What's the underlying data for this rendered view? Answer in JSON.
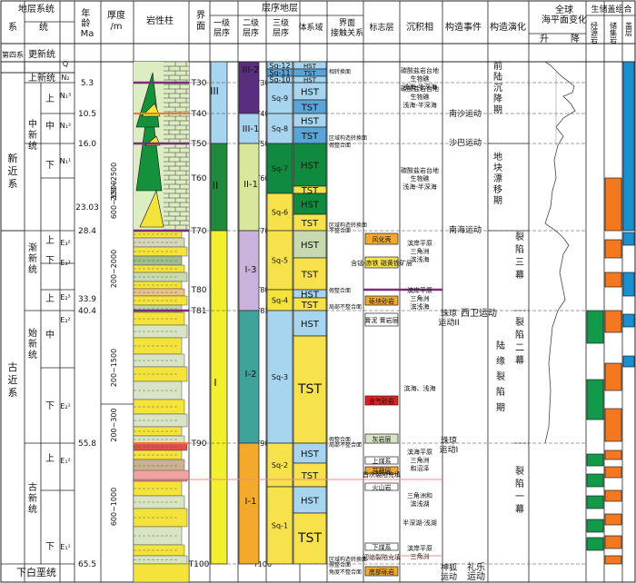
{
  "header": {
    "stratigraphic_system": "地层系统",
    "system": "系",
    "series": "统",
    "age": "年龄 Ma",
    "thickness": "厚度 /m",
    "lithology": "岩性柱",
    "boundary": "界面",
    "sequence_stratigraphy": "层序地层",
    "first_order": "一级 层序",
    "second_order": "二级 层序",
    "third_order": "三级 层序",
    "systems_tract": "体系域",
    "contact": "界面 接触关系",
    "marker": "标志层",
    "facies": "沉积相",
    "events": "构造事件",
    "evolution": "构造演化",
    "sea_level": "全球 海平面变化",
    "rise": "升",
    "fall": "降",
    "petroleum": "生储盖组合",
    "source": "烃源岩",
    "reservoir": "储集岩",
    "seal": "盖层"
  },
  "systems": [
    {
      "label": "第四系"
    },
    {
      "label": "新近系"
    },
    {
      "label": "古近系"
    }
  ],
  "series": [
    {
      "label": "更新统"
    },
    {
      "label": "上新统"
    },
    {
      "label": "中新统"
    },
    {
      "label": "渐新统"
    },
    {
      "label": "始新统"
    },
    {
      "label": "古新统"
    }
  ],
  "bottom_label": "下白垩统",
  "subseries": [
    {
      "label": "上",
      "code": "N₁³"
    },
    {
      "label": "中",
      "code": "N₁²"
    },
    {
      "label": "下",
      "code": "N₁¹"
    },
    {
      "label": "上",
      "code": "E₃²"
    },
    {
      "label": "下",
      "code": "E₃¹"
    },
    {
      "label": "上",
      "code": "E₂³"
    },
    {
      "label": "中",
      "code": "E₂²"
    },
    {
      "label": "下",
      "code": "E₂¹"
    },
    {
      "label": "上",
      "code": "E₁²"
    },
    {
      "label": "下",
      "code": "E₁¹"
    }
  ],
  "codes_top": [
    "Q",
    "N₂"
  ],
  "ages": [
    "5.3",
    "10.5",
    "16.0",
    "23.03",
    "28.4",
    "33.9",
    "40.4",
    "55.8",
    "65.5"
  ],
  "thickness": [
    "200~2500",
    "600~1500",
    "200~2000",
    "200~1500",
    "200~300",
    "600~1000"
  ],
  "surfaces": [
    "T30",
    "T40",
    "T50",
    "T60",
    "T70",
    "T80",
    "T81",
    "T90",
    "T100"
  ],
  "first_order": [
    "III",
    "II",
    "I"
  ],
  "second_order": [
    "III-2",
    "III-1",
    "II-1",
    "I-3",
    "I-2",
    "I-1"
  ],
  "third_order": [
    "Sq-12",
    "Sq-11",
    "Sq-10",
    "Sq-9",
    "Sq-8",
    "Sq-7",
    "Sq-6",
    "Sq-5",
    "Sq-4",
    "Sq-3",
    "Sq-2",
    "Sq-1"
  ],
  "tracts": {
    "hst": "HST",
    "tst": "TST"
  },
  "contacts": [
    "相转换面",
    "区域构造转换面",
    "假整合面",
    "区域构造转换面",
    "不整合面",
    "假整合面",
    "局部不整合面",
    "假整合面",
    "局部不整合面",
    "区域构造转换面",
    "假整合面",
    "角度不整合面"
  ],
  "markers": [
    "风化壳",
    "含锰-赤铁 磁黄铁矿层",
    "砾块砂岩",
    "膏泥 膏岩层",
    "含气砂岩",
    "灰岩层",
    "上煤系",
    "苔藓层",
    "火山岩",
    "下煤系",
    "底部砾岩"
  ],
  "facies": [
    "碳酸盐岩台地 生物礁 浅海-半深海",
    "碳酸盐岩台地 生物礁 浅海-半深海",
    "碳酸盐岩台地 生物礁 浅海-半深海",
    "滨岸平原 三角洲 滨浅海",
    "滨岸平原 三角洲 滨浅海",
    "滨海、浅海",
    "滨海平原 三角洲 和沼泽",
    "三角洲和 滨浅湖",
    "半深湖-浅湖",
    "滨岸平原 三角洲"
  ],
  "events": [
    "南沙运动",
    "沙巴运动",
    "南海运动",
    "西卫运动",
    "珠琼 运动II",
    "珠琼 运动I",
    "礼乐 运动",
    "神狐 运动"
  ],
  "evolution": [
    "前陆沉降期",
    "地块漂移期",
    "裂陷三幕",
    "陆缘裂陷期",
    "裂陷二幕",
    "裂陷一幕"
  ],
  "annotations": [
    "首次裂陷充填",
    "初始裂陷充填"
  ],
  "colors": {
    "first_III": "#a7d4ef",
    "first_II": "#1d8a3c",
    "first_I": "#f2f02c",
    "second_III2": "#5a2d7e",
    "second_III1": "#a7d4ef",
    "second_II1": "#d7e89a",
    "second_I3": "#c9b3dc",
    "second_I2": "#40a39b",
    "second_I1": "#f3a92a",
    "hst": "#0f8a3e",
    "tst": "#f8e24c",
    "marine_hst": "#a7d4ef",
    "marine_tst": "#5aa5d8",
    "boundary_line": "#7a2d7a",
    "orange_line": "#f07a20",
    "source": "#129a4a",
    "reservoir": "#f37820",
    "seal": "#1a8fd2",
    "red_annotation": "#e02020"
  }
}
